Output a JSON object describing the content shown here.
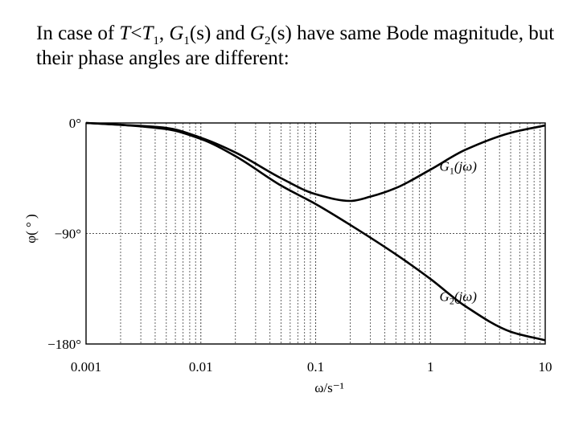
{
  "caption": {
    "p1": "In case of ",
    "T": "T",
    "lt": "<",
    "T1": "T",
    "sub_1a": "1",
    "comma1": ", ",
    "G1": "G",
    "sub_1b": "1",
    "s1": "(s) and ",
    "G2": "G",
    "sub_2": "2",
    "s2": "(s) have same Bode magnitude, but their phase angles are different:"
  },
  "chart_data": {
    "type": "line",
    "title": "",
    "xlabel": "ω/s⁻¹",
    "ylabel": "φ( ° )",
    "x_scale": "log",
    "xlim": [
      0.001,
      10
    ],
    "ylim": [
      -180,
      0
    ],
    "xticks": [
      {
        "value": 0.001,
        "label": "0.001"
      },
      {
        "value": 0.01,
        "label": "0.01"
      },
      {
        "value": 0.1,
        "label": "0.1"
      },
      {
        "value": 1,
        "label": "1"
      },
      {
        "value": 10,
        "label": "10"
      }
    ],
    "yticks": [
      {
        "value": 0,
        "label": "0°"
      },
      {
        "value": -90,
        "label": "−90°"
      },
      {
        "value": -180,
        "label": "−180°"
      }
    ],
    "grid": {
      "vertical_minor_log": true,
      "horizontal_at": [
        -90
      ],
      "style": "dotted"
    },
    "series": [
      {
        "name": "G1(jω)",
        "label_parts": {
          "g": "G",
          "sub": "1",
          "arg": "(jω)"
        },
        "x": [
          0.001,
          0.002,
          0.005,
          0.01,
          0.02,
          0.05,
          0.1,
          0.2,
          0.3,
          0.5,
          1,
          2,
          5,
          10
        ],
        "y": [
          0,
          -1.5,
          -4,
          -12,
          -24,
          -45,
          -58,
          -63.5,
          -60,
          -53,
          -38,
          -22,
          -8,
          -2
        ]
      },
      {
        "name": "G2(jω)",
        "label_parts": {
          "g": "G",
          "sub": "2",
          "arg": "(jω)"
        },
        "x": [
          0.001,
          0.002,
          0.005,
          0.01,
          0.02,
          0.05,
          0.1,
          0.2,
          0.5,
          1,
          2,
          5,
          10
        ],
        "y": [
          0,
          -1.5,
          -5,
          -13,
          -27,
          -51,
          -66,
          -83,
          -107,
          -127,
          -149,
          -170,
          -177
        ]
      }
    ],
    "colors": {
      "curve": "#000000",
      "grid": "#555555",
      "frame": "#000000"
    }
  }
}
